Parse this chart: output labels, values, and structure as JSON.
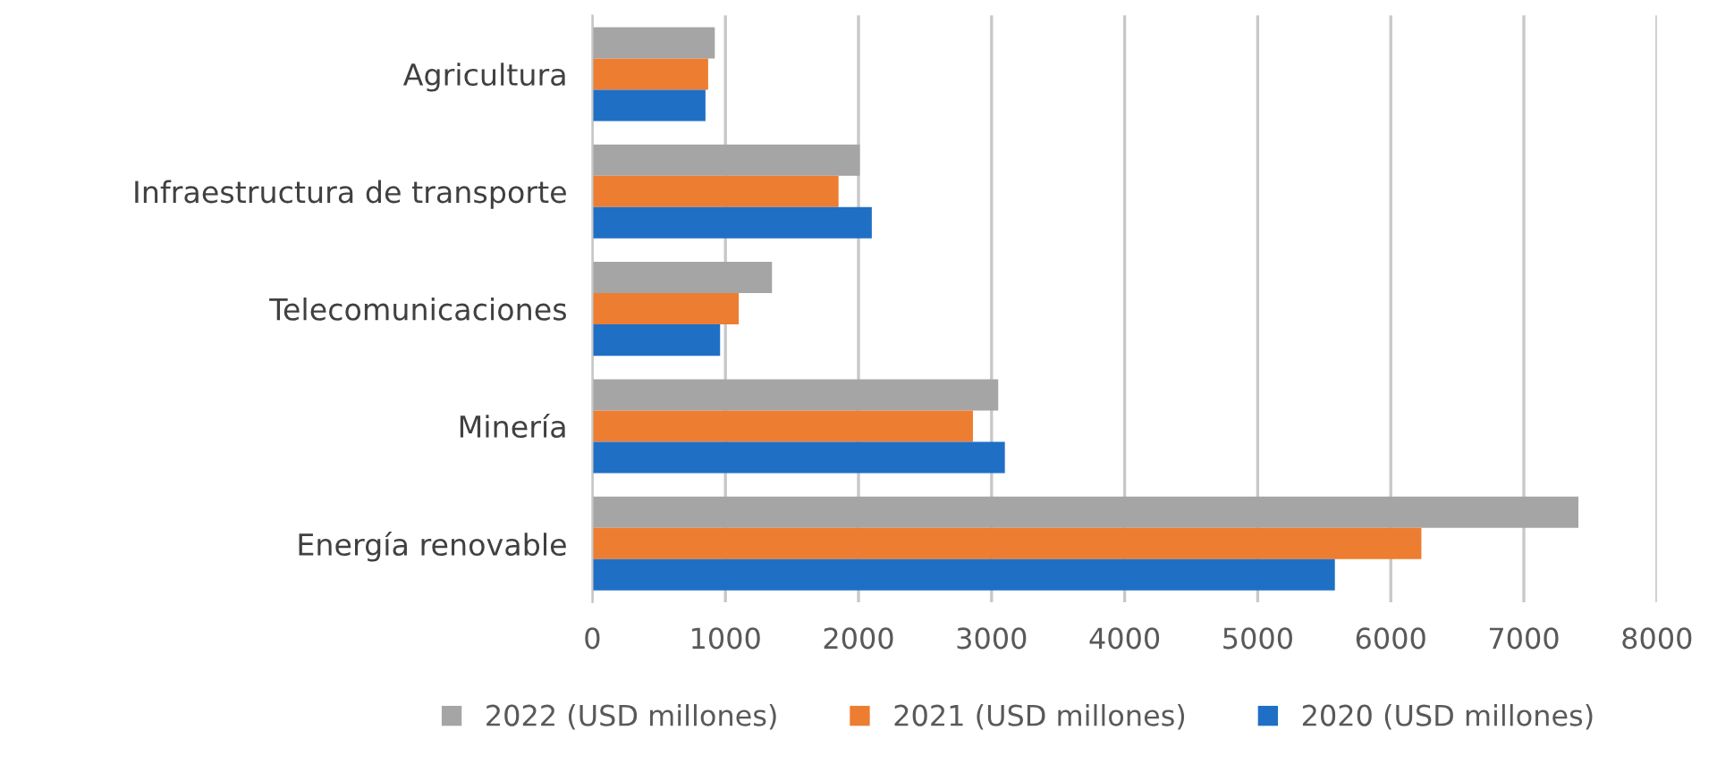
{
  "chart_data": {
    "type": "bar",
    "orientation": "horizontal",
    "categories": [
      "Agricultura",
      "Infraestructura de transporte",
      "Telecomunicaciones",
      "Minería",
      "Energía renovable"
    ],
    "series": [
      {
        "name": "2022 (USD millones)",
        "color": "#a5a5a5",
        "values": [
          920,
          2010,
          1350,
          3050,
          7410
        ]
      },
      {
        "name": "2021 (USD millones)",
        "color": "#ed7d31",
        "values": [
          870,
          1850,
          1100,
          2860,
          6230
        ]
      },
      {
        "name": "2020 (USD millones)",
        "color": "#1f6fc5",
        "values": [
          850,
          2100,
          960,
          3100,
          5580
        ]
      }
    ],
    "xlim": [
      0,
      8000
    ],
    "xticks": [
      0,
      1000,
      2000,
      3000,
      4000,
      5000,
      6000,
      7000,
      8000
    ],
    "grid": "x",
    "legend": "bottom"
  }
}
